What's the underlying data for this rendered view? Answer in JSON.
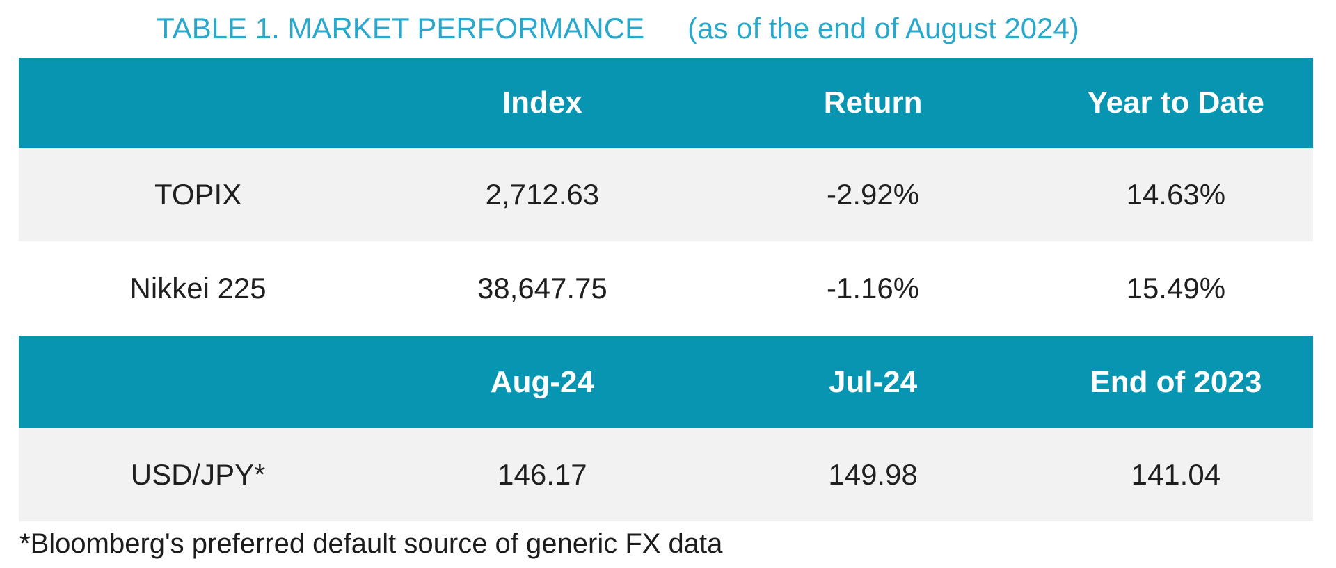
{
  "title": {
    "main": "TABLE 1. MARKET PERFORMANCE",
    "subtitle": "(as of the end of August 2024)"
  },
  "colors": {
    "header_band": "#0895B1",
    "title_text": "#29A8CB",
    "alt_row_bg": "#F2F2F2",
    "header_text": "#FFFFFF",
    "body_text": "#1F1F1F"
  },
  "table_market": {
    "headers": [
      "",
      "Index",
      "Return",
      "Year to Date"
    ],
    "rows": [
      {
        "label": "TOPIX",
        "values": [
          "2,712.63",
          "-2.92%",
          "14.63%"
        ]
      },
      {
        "label": "Nikkei 225",
        "values": [
          "38,647.75",
          "-1.16%",
          "15.49%"
        ]
      }
    ]
  },
  "table_fx": {
    "headers": [
      "",
      "Aug-24",
      "Jul-24",
      "End of 2023"
    ],
    "rows": [
      {
        "label": "USD/JPY*",
        "values": [
          "146.17",
          "149.98",
          "141.04"
        ]
      }
    ]
  },
  "footnote": "*Bloomberg's preferred default source of generic FX data"
}
